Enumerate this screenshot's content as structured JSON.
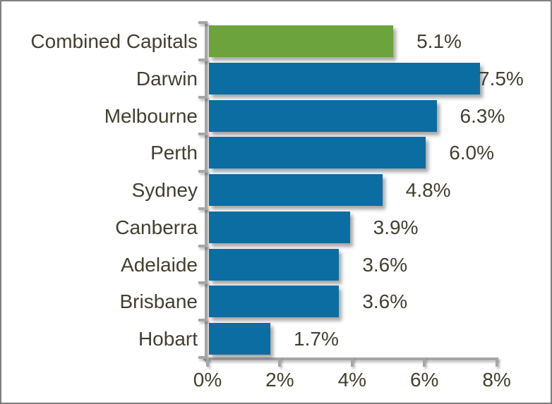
{
  "chart_data": {
    "type": "bar",
    "orientation": "horizontal",
    "title": "",
    "xlabel": "",
    "ylabel": "",
    "categories": [
      "Combined Capitals",
      "Darwin",
      "Melbourne",
      "Perth",
      "Sydney",
      "Canberra",
      "Adelaide",
      "Brisbane",
      "Hobart"
    ],
    "values": [
      5.1,
      7.5,
      6.3,
      6.0,
      4.8,
      3.9,
      3.6,
      3.6,
      1.7
    ],
    "value_labels": [
      "5.1%",
      "7.5%",
      "6.3%",
      "6.0%",
      "4.8%",
      "3.9%",
      "3.6%",
      "3.6%",
      "1.7%"
    ],
    "highlight_index": 0,
    "xlim": [
      0,
      8
    ],
    "x_tick_values": [
      0,
      2,
      4,
      6,
      8
    ],
    "x_tick_labels": [
      "0%",
      "2%",
      "4%",
      "6%",
      "8%"
    ],
    "grid": false,
    "legend": false,
    "colors": {
      "highlight_bar": "#6ca33c",
      "default_bar": "#0b6da2",
      "axis": "#a6a6a6",
      "text": "#433e2f",
      "background": "#ffffff",
      "border": "#808080"
    }
  }
}
